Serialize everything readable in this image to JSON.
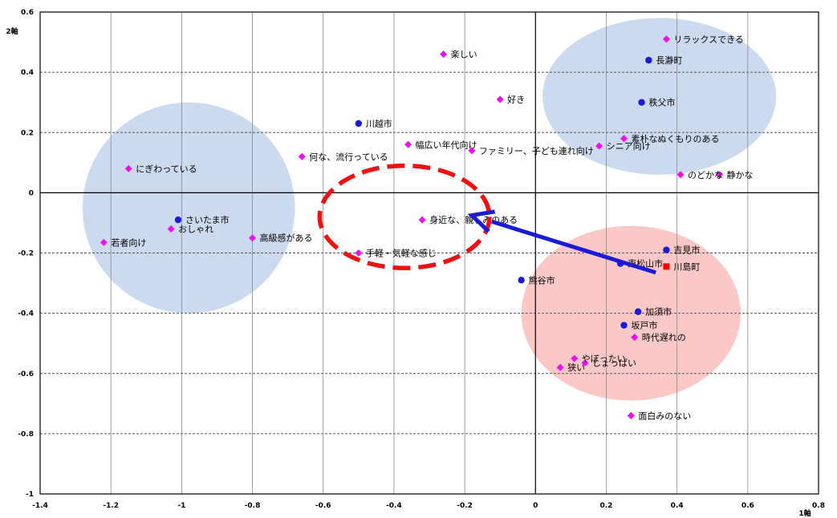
{
  "chart_data": {
    "type": "scatter",
    "title": "",
    "xlabel": "1軸",
    "ylabel": "2軸",
    "xlim": [
      -1.4,
      0.8
    ],
    "ylim": [
      -1,
      0.6
    ],
    "x_ticks": [
      -1.4,
      -1.2,
      -1,
      -0.8,
      -0.6,
      -0.4,
      -0.2,
      0,
      0.2,
      0.4,
      0.6,
      0.8
    ],
    "y_ticks": [
      -1,
      -0.8,
      -0.6,
      -0.4,
      -0.2,
      0,
      0.2,
      0.4,
      0.6
    ],
    "x_tick_labels": [
      "-1.4",
      "-1.2",
      "-1",
      "-0.8",
      "-0.6",
      "-0.4",
      "-0.2",
      "0",
      "0.2",
      "0.4",
      "0.6",
      "0.8"
    ],
    "y_tick_labels": [
      "-1",
      "-0.8",
      "-0.6",
      "-0.4",
      "-0.2",
      "0",
      "0.2",
      "0.4",
      "0.6"
    ],
    "grid": true,
    "colors": {
      "city": "#1a1ad8",
      "adjective": "#ee11ee",
      "highlight": "#ff0000",
      "blue_zone": "#ccdaf0",
      "pink_zone": "#fbc8c8",
      "arrow": "#1a1ad8",
      "dashed_ellipse": "#ee1111"
    },
    "series": [
      {
        "kind": "city",
        "points": [
          {
            "label": "長瀞町",
            "x": 0.32,
            "y": 0.44
          },
          {
            "label": "秩父市",
            "x": 0.3,
            "y": 0.3
          },
          {
            "label": "川越市",
            "x": -0.5,
            "y": 0.23
          },
          {
            "label": "さいたま市",
            "x": -1.01,
            "y": -0.09
          },
          {
            "label": "吉見市",
            "x": 0.37,
            "y": -0.19
          },
          {
            "label": "東松山市",
            "x": 0.24,
            "y": -0.235
          },
          {
            "label": "熊谷市",
            "x": -0.04,
            "y": -0.29
          },
          {
            "label": "加須市",
            "x": 0.29,
            "y": -0.395
          },
          {
            "label": "坂戸市",
            "x": 0.25,
            "y": -0.44
          }
        ]
      },
      {
        "kind": "adjective",
        "points": [
          {
            "label": "リラックスできる",
            "x": 0.37,
            "y": 0.51
          },
          {
            "label": "楽しい",
            "x": -0.26,
            "y": 0.46
          },
          {
            "label": "好き",
            "x": -0.1,
            "y": 0.31
          },
          {
            "label": "素朴なぬくもりのある",
            "x": 0.25,
            "y": 0.18
          },
          {
            "label": "幅広い年代向け",
            "x": -0.36,
            "y": 0.16
          },
          {
            "label": "ファミリー、子ども連れ向け",
            "x": -0.18,
            "y": 0.14
          },
          {
            "label": "シニア向け",
            "x": 0.18,
            "y": 0.155
          },
          {
            "label": "何な、流行っている",
            "x": -0.66,
            "y": 0.12
          },
          {
            "label": "にぎわっている",
            "x": -1.15,
            "y": 0.08
          },
          {
            "label": "のどかな",
            "x": 0.41,
            "y": 0.06
          },
          {
            "label": "静かな",
            "x": 0.52,
            "y": 0.06
          },
          {
            "label": "身近な、親しみのある",
            "x": -0.32,
            "y": -0.09
          },
          {
            "label": "おしゃれ",
            "x": -1.03,
            "y": -0.12
          },
          {
            "label": "若者向け",
            "x": -1.22,
            "y": -0.165
          },
          {
            "label": "高級感がある",
            "x": -0.8,
            "y": -0.15
          },
          {
            "label": "手軽・気軽な感じ",
            "x": -0.5,
            "y": -0.2
          },
          {
            "label": "時代遅れの",
            "x": 0.28,
            "y": -0.48
          },
          {
            "label": "やぼったい",
            "x": 0.11,
            "y": -0.55
          },
          {
            "label": "しょっぱい",
            "x": 0.14,
            "y": -0.565
          },
          {
            "label": "狭い",
            "x": 0.07,
            "y": -0.58
          },
          {
            "label": "面白みのない",
            "x": 0.27,
            "y": -0.74
          }
        ]
      },
      {
        "kind": "highlight",
        "points": [
          {
            "label": "川島町",
            "x": 0.37,
            "y": -0.245
          }
        ]
      }
    ],
    "annotations": {
      "blue_zones": [
        {
          "center": [
            -0.98,
            -0.05
          ],
          "radius": [
            0.3,
            0.35
          ]
        },
        {
          "center": [
            0.35,
            0.32
          ],
          "radius": [
            0.33,
            0.26
          ]
        }
      ],
      "pink_zone": {
        "center": [
          0.27,
          -0.4
        ],
        "radius": [
          0.31,
          0.29
        ]
      },
      "dashed_ellipse": {
        "center": [
          -0.37,
          -0.08
        ],
        "radius": [
          0.24,
          0.17
        ]
      },
      "arrow": {
        "from": [
          0.34,
          -0.265
        ],
        "to": [
          -0.18,
          -0.075
        ]
      }
    }
  }
}
